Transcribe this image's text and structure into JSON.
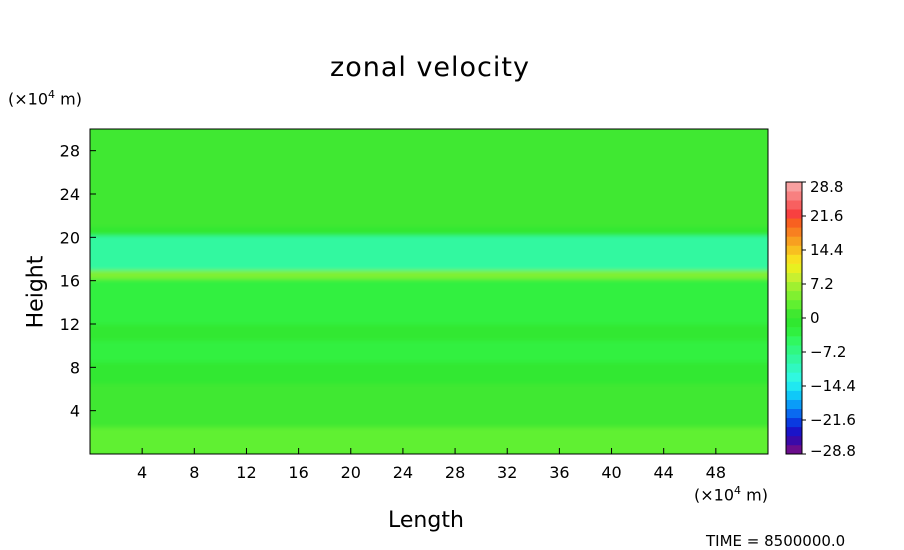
{
  "chart_data": {
    "type": "heatmap",
    "title": "zonal velocity",
    "xlabel": "Length",
    "ylabel": "Height",
    "x_unit": "m",
    "y_unit": "m",
    "x_unit_text": "(×10",
    "y_unit_text": "(×10",
    "unit_exponent": "4",
    "unit_suffix": " m)",
    "xlim": [
      0,
      52
    ],
    "ylim": [
      0,
      30
    ],
    "x_ticks": [
      4,
      8,
      12,
      16,
      20,
      24,
      28,
      32,
      36,
      40,
      44,
      48
    ],
    "y_ticks": [
      4,
      8,
      12,
      16,
      20,
      24,
      28
    ],
    "bands": [
      {
        "y_from": 0,
        "y_to": 2.5,
        "value": 2.0
      },
      {
        "y_from": 2.5,
        "y_to": 6.5,
        "value": 1.2
      },
      {
        "y_from": 6.5,
        "y_to": 8.5,
        "value": -0.8
      },
      {
        "y_from": 8.5,
        "y_to": 10.5,
        "value": -3.5
      },
      {
        "y_from": 10.5,
        "y_to": 12,
        "value": -1.5
      },
      {
        "y_from": 12,
        "y_to": 16.2,
        "value": -2.5
      },
      {
        "y_from": 16.2,
        "y_to": 17.0,
        "value": 4.0
      },
      {
        "y_from": 17.0,
        "y_to": 20.2,
        "value": -9.5
      },
      {
        "y_from": 20.2,
        "y_to": 21.0,
        "value": -1.0
      },
      {
        "y_from": 21.0,
        "y_to": 30,
        "value": 0.5
      }
    ],
    "colorbar": {
      "range": [
        -28.8,
        28.8
      ],
      "labels": [
        "28.8",
        "21.6",
        "14.4",
        "7.2",
        "0",
        "−7.2",
        "−14.4",
        "−21.6",
        "−28.8"
      ],
      "label_values": [
        28.8,
        21.6,
        14.4,
        7.2,
        0,
        -7.2,
        -14.4,
        -21.6,
        -28.8
      ],
      "levels": 30,
      "colors": [
        "#6a0d8c",
        "#3a0aa8",
        "#1a14c8",
        "#0a3ae0",
        "#0a6af0",
        "#0a9cf8",
        "#10c8f8",
        "#20e8f0",
        "#30f8e0",
        "#30f8c0",
        "#30f8a0",
        "#30f880",
        "#30f860",
        "#30f040",
        "#30e830",
        "#40e830",
        "#60f030",
        "#80f030",
        "#a0f030",
        "#c8f030",
        "#e8f020",
        "#f8e020",
        "#f8c020",
        "#f8a020",
        "#f88020",
        "#f86020",
        "#f84040",
        "#f86060",
        "#f88080",
        "#f8a0a0"
      ]
    },
    "time_label": "TIME = 8500000.0"
  }
}
